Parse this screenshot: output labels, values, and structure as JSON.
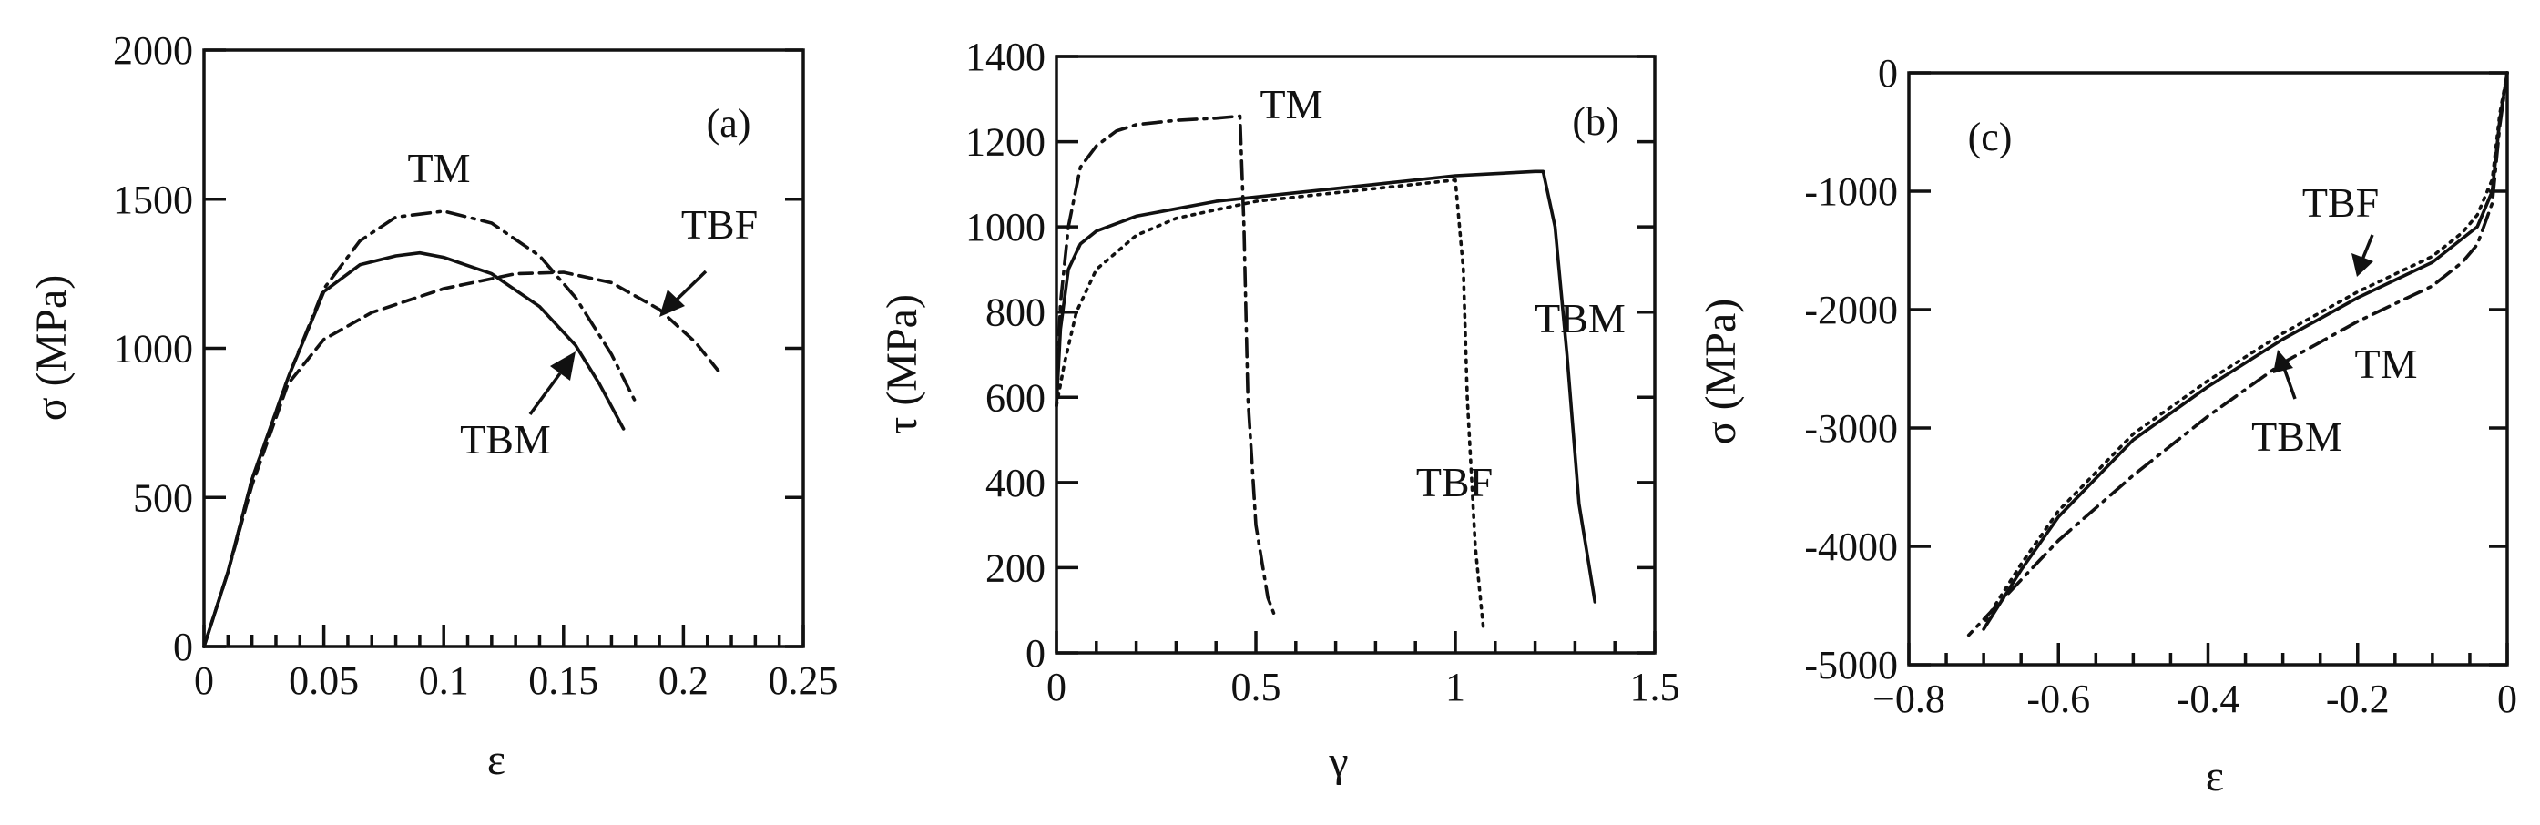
{
  "chart_data": [
    {
      "type": "line",
      "panel_label": "(a)",
      "xlabel": "ε",
      "ylabel": "σ (MPa)",
      "xlim": [
        0,
        0.25
      ],
      "ylim": [
        0,
        2000
      ],
      "x_ticks": [
        "0",
        "0.05",
        "0.1",
        "0.15",
        "0.2",
        "0.25"
      ],
      "y_ticks": [
        "0",
        "500",
        "1000",
        "1500",
        "2000"
      ],
      "series": [
        {
          "name": "TM",
          "style": "dash-dot",
          "x": [
            0,
            0.01,
            0.02,
            0.035,
            0.05,
            0.065,
            0.08,
            0.1,
            0.12,
            0.14,
            0.155,
            0.17,
            0.18
          ],
          "y": [
            0,
            250,
            560,
            900,
            1200,
            1360,
            1440,
            1460,
            1420,
            1310,
            1170,
            980,
            820
          ]
        },
        {
          "name": "TBM",
          "style": "solid",
          "x": [
            0,
            0.01,
            0.02,
            0.035,
            0.05,
            0.065,
            0.08,
            0.09,
            0.1,
            0.12,
            0.14,
            0.155,
            0.165,
            0.175
          ],
          "y": [
            0,
            250,
            560,
            900,
            1190,
            1280,
            1310,
            1320,
            1305,
            1250,
            1140,
            1010,
            880,
            730
          ]
        },
        {
          "name": "TBF",
          "style": "dashed",
          "x": [
            0,
            0.01,
            0.02,
            0.035,
            0.05,
            0.07,
            0.1,
            0.13,
            0.15,
            0.17,
            0.19,
            0.205,
            0.215
          ],
          "y": [
            0,
            250,
            540,
            880,
            1030,
            1120,
            1200,
            1250,
            1255,
            1220,
            1130,
            1020,
            920
          ]
        }
      ],
      "annotations": [
        {
          "text": "TM",
          "points_to": "TM"
        },
        {
          "text": "TBF",
          "points_to": "TBF"
        },
        {
          "text": "TBM",
          "points_to": "TBM"
        }
      ]
    },
    {
      "type": "line",
      "panel_label": "(b)",
      "xlabel": "γ",
      "ylabel": "τ (MPa)",
      "xlim": [
        0,
        1.5
      ],
      "ylim": [
        0,
        1400
      ],
      "x_ticks": [
        "0",
        "0.5",
        "1",
        "1.5"
      ],
      "y_ticks": [
        "0",
        "200",
        "400",
        "600",
        "800",
        "1000",
        "1200",
        "1400"
      ],
      "series": [
        {
          "name": "TM",
          "style": "dash-dot",
          "x": [
            0,
            0.01,
            0.03,
            0.06,
            0.1,
            0.15,
            0.2,
            0.3,
            0.4,
            0.46,
            0.47,
            0.48,
            0.5,
            0.53,
            0.55
          ],
          "y": [
            580,
            820,
            1000,
            1140,
            1190,
            1225,
            1240,
            1250,
            1255,
            1260,
            1000,
            600,
            300,
            130,
            80
          ]
        },
        {
          "name": "TBM",
          "style": "solid",
          "x": [
            0,
            0.01,
            0.03,
            0.06,
            0.1,
            0.2,
            0.4,
            0.6,
            0.8,
            1.0,
            1.1,
            1.2,
            1.22,
            1.25,
            1.28,
            1.31,
            1.35
          ],
          "y": [
            580,
            760,
            900,
            960,
            990,
            1025,
            1060,
            1080,
            1100,
            1120,
            1125,
            1130,
            1130,
            1000,
            700,
            350,
            120
          ]
        },
        {
          "name": "TBF",
          "style": "dotted",
          "x": [
            0,
            0.02,
            0.05,
            0.1,
            0.2,
            0.3,
            0.5,
            0.7,
            0.9,
            1.0,
            1.02,
            1.03,
            1.05,
            1.07
          ],
          "y": [
            580,
            680,
            800,
            900,
            980,
            1020,
            1060,
            1080,
            1100,
            1110,
            900,
            600,
            250,
            60
          ]
        }
      ],
      "annotations": [
        {
          "text": "TM",
          "points_to": "TM"
        },
        {
          "text": "TBF",
          "points_to": "TBF"
        },
        {
          "text": "TBM",
          "points_to": "TBM"
        }
      ]
    },
    {
      "type": "line",
      "panel_label": "(c)",
      "xlabel": "ε",
      "ylabel": "σ (MPa)",
      "xlim": [
        -0.8,
        0
      ],
      "ylim": [
        -5000,
        0
      ],
      "x_ticks": [
        "−0.8",
        "-0.6",
        "-0.4",
        "-0.2",
        "0"
      ],
      "y_ticks": [
        "0",
        "-1000",
        "-2000",
        "-3000",
        "-4000",
        "-5000"
      ],
      "series": [
        {
          "name": "TBM",
          "style": "solid",
          "x": [
            0,
            -0.01,
            -0.02,
            -0.04,
            -0.06,
            -0.1,
            -0.2,
            -0.3,
            -0.4,
            -0.5,
            -0.6,
            -0.65,
            -0.7
          ],
          "y": [
            0,
            -400,
            -1000,
            -1300,
            -1400,
            -1600,
            -1900,
            -2250,
            -2650,
            -3100,
            -3750,
            -4200,
            -4700
          ]
        },
        {
          "name": "TBF",
          "style": "dotted",
          "x": [
            0,
            -0.01,
            -0.02,
            -0.04,
            -0.06,
            -0.1,
            -0.2,
            -0.3,
            -0.4,
            -0.5,
            -0.6,
            -0.65,
            -0.7
          ],
          "y": [
            0,
            -350,
            -900,
            -1200,
            -1350,
            -1550,
            -1850,
            -2200,
            -2600,
            -3050,
            -3700,
            -4150,
            -4650
          ]
        },
        {
          "name": "TM",
          "style": "dash-dot",
          "x": [
            0,
            -0.01,
            -0.02,
            -0.04,
            -0.06,
            -0.1,
            -0.2,
            -0.3,
            -0.4,
            -0.5,
            -0.6,
            -0.66,
            -0.72
          ],
          "y": [
            0,
            -450,
            -1100,
            -1450,
            -1600,
            -1800,
            -2100,
            -2450,
            -2900,
            -3400,
            -3950,
            -4350,
            -4750
          ]
        }
      ],
      "annotations": [
        {
          "text": "TBF",
          "points_to": "TBF"
        },
        {
          "text": "TM",
          "points_to": "TM"
        },
        {
          "text": "TBM",
          "points_to": "TBM"
        }
      ]
    }
  ]
}
